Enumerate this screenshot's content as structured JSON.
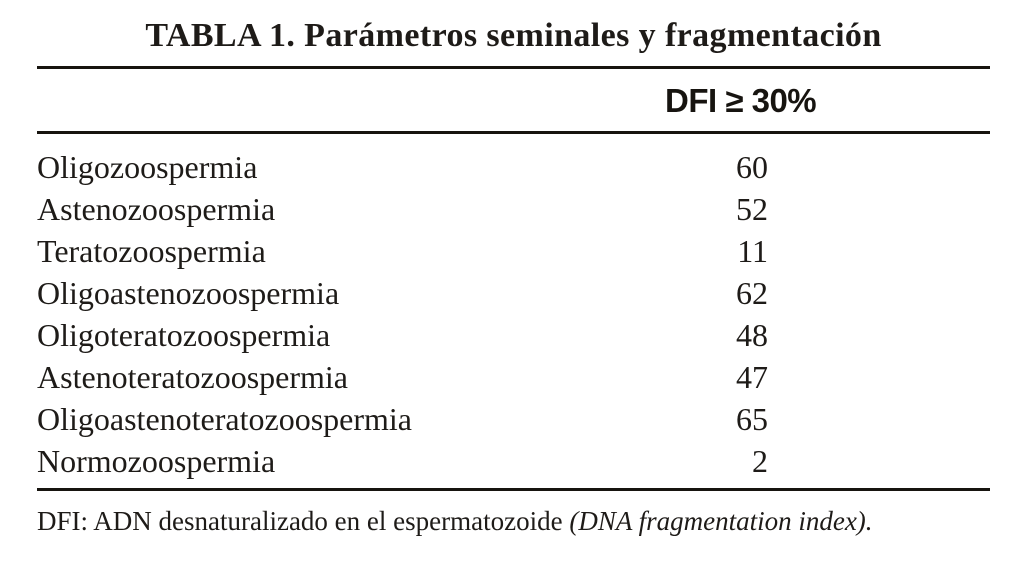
{
  "title": "TABLA 1. Parámetros seminales y fragmentación",
  "table": {
    "column_header": "DFI ≥ 30%",
    "rows": [
      {
        "label": "Oligozoospermia",
        "value": "60"
      },
      {
        "label": "Astenozoospermia",
        "value": "52"
      },
      {
        "label": "Teratozoospermia",
        "value": "11"
      },
      {
        "label": "Oligoastenozoospermia",
        "value": "62"
      },
      {
        "label": "Oligoteratozoospermia",
        "value": "48"
      },
      {
        "label": "Astenoteratozoospermia",
        "value": "47"
      },
      {
        "label": "Oligoastenoteratozoospermia",
        "value": "65"
      },
      {
        "label": "Normozoospermia",
        "value": "2"
      }
    ]
  },
  "footnote": {
    "regular": "DFI: ADN desnaturalizado en el espermatozoide ",
    "italic": "(DNA fragmentation index)."
  },
  "colors": {
    "background": "#ffffff",
    "text": "#1e1b18",
    "rule": "#17140f"
  }
}
